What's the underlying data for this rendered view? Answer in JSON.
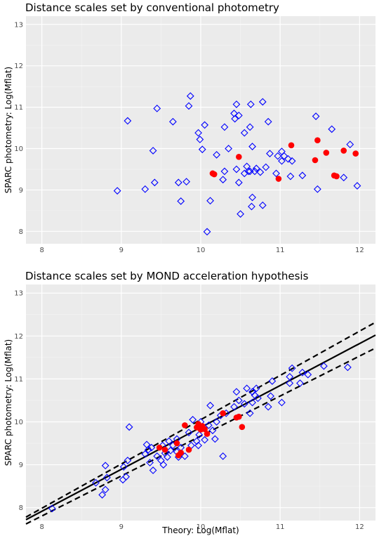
{
  "chart_data": [
    {
      "type": "scatter",
      "title": "Distance scales set by conventional photometry",
      "xlabel": "",
      "ylabel": "SPARC photometry:  Log(Mflat)",
      "xlim": [
        7.8,
        12.2
      ],
      "ylim": [
        7.7,
        13.2
      ],
      "xticks": [
        8,
        9,
        10,
        11,
        12
      ],
      "yticks": [
        8,
        9,
        10,
        11,
        12,
        13
      ],
      "grid": true,
      "background": "#ebebeb",
      "series": [
        {
          "marker": "diamond-open",
          "color": "#0000ff",
          "points": [
            [
              8.95,
              8.98
            ],
            [
              9.08,
              10.67
            ],
            [
              9.3,
              9.02
            ],
            [
              9.4,
              9.95
            ],
            [
              9.42,
              9.18
            ],
            [
              9.45,
              10.97
            ],
            [
              9.65,
              10.65
            ],
            [
              9.72,
              9.18
            ],
            [
              9.75,
              8.73
            ],
            [
              9.82,
              9.2
            ],
            [
              9.85,
              11.03
            ],
            [
              9.87,
              11.27
            ],
            [
              9.97,
              10.38
            ],
            [
              9.99,
              10.22
            ],
            [
              10.02,
              9.98
            ],
            [
              10.05,
              10.57
            ],
            [
              10.08,
              7.99
            ],
            [
              10.12,
              8.74
            ],
            [
              10.2,
              9.85
            ],
            [
              10.28,
              9.25
            ],
            [
              10.3,
              9.45
            ],
            [
              10.3,
              10.52
            ],
            [
              10.35,
              10.0
            ],
            [
              10.42,
              10.85
            ],
            [
              10.43,
              10.72
            ],
            [
              10.45,
              11.07
            ],
            [
              10.45,
              9.5
            ],
            [
              10.48,
              10.8
            ],
            [
              10.48,
              9.18
            ],
            [
              10.5,
              8.42
            ],
            [
              10.55,
              9.4
            ],
            [
              10.55,
              10.38
            ],
            [
              10.58,
              9.57
            ],
            [
              10.6,
              9.45
            ],
            [
              10.62,
              9.45
            ],
            [
              10.62,
              10.52
            ],
            [
              10.63,
              11.07
            ],
            [
              10.64,
              8.6
            ],
            [
              10.65,
              10.05
            ],
            [
              10.65,
              8.82
            ],
            [
              10.68,
              9.45
            ],
            [
              10.7,
              9.52
            ],
            [
              10.75,
              9.43
            ],
            [
              10.78,
              11.13
            ],
            [
              10.78,
              8.63
            ],
            [
              10.82,
              9.55
            ],
            [
              10.85,
              10.65
            ],
            [
              10.87,
              9.88
            ],
            [
              10.95,
              9.4
            ],
            [
              10.97,
              9.82
            ],
            [
              11.02,
              9.93
            ],
            [
              11.02,
              9.7
            ],
            [
              11.05,
              9.82
            ],
            [
              11.1,
              9.75
            ],
            [
              11.13,
              9.33
            ],
            [
              11.15,
              9.7
            ],
            [
              11.28,
              9.35
            ],
            [
              11.45,
              10.78
            ],
            [
              11.47,
              9.02
            ],
            [
              11.65,
              10.47
            ],
            [
              11.8,
              9.3
            ],
            [
              11.88,
              10.1
            ],
            [
              11.97,
              9.1
            ]
          ]
        },
        {
          "marker": "circle-filled",
          "color": "#ff0000",
          "points": [
            [
              10.15,
              9.4
            ],
            [
              10.17,
              9.38
            ],
            [
              10.48,
              9.8
            ],
            [
              10.98,
              9.27
            ],
            [
              11.14,
              10.08
            ],
            [
              11.44,
              9.72
            ],
            [
              11.47,
              10.2
            ],
            [
              11.58,
              9.9
            ],
            [
              11.68,
              9.35
            ],
            [
              11.71,
              9.33
            ],
            [
              11.8,
              9.95
            ],
            [
              11.95,
              9.88
            ]
          ]
        }
      ]
    },
    {
      "type": "scatter",
      "title": "Distance scales set by MOND acceleration hypothesis",
      "xlabel": "Theory:  Log(Mflat)",
      "ylabel": "SPARC photometry:  Log(Mflat)",
      "xlim": [
        7.8,
        12.2
      ],
      "ylim": [
        7.7,
        13.2
      ],
      "xticks": [
        8,
        9,
        10,
        11,
        12
      ],
      "yticks": [
        8,
        9,
        10,
        11,
        12,
        13
      ],
      "grid": true,
      "background": "#ebebeb",
      "lines": [
        {
          "style": "solid",
          "points": [
            [
              7.8,
              7.72
            ],
            [
              12.2,
              12.02
            ]
          ]
        },
        {
          "style": "dashed",
          "points": [
            [
              7.8,
              7.78
            ],
            [
              12.2,
              12.32
            ]
          ]
        },
        {
          "style": "dashed",
          "points": [
            [
              7.8,
              7.62
            ],
            [
              12.2,
              11.72
            ]
          ]
        }
      ],
      "series": [
        {
          "marker": "diamond-open",
          "color": "#0000ff",
          "points": [
            [
              8.13,
              7.98
            ],
            [
              8.68,
              8.58
            ],
            [
              8.76,
              8.3
            ],
            [
              8.8,
              8.42
            ],
            [
              8.8,
              8.98
            ],
            [
              8.82,
              8.7
            ],
            [
              9.02,
              8.65
            ],
            [
              9.03,
              8.95
            ],
            [
              9.06,
              8.72
            ],
            [
              9.08,
              9.1
            ],
            [
              9.1,
              9.88
            ],
            [
              9.3,
              9.25
            ],
            [
              9.32,
              9.47
            ],
            [
              9.34,
              9.35
            ],
            [
              9.36,
              9.05
            ],
            [
              9.38,
              9.4
            ],
            [
              9.4,
              8.87
            ],
            [
              9.45,
              9.2
            ],
            [
              9.5,
              9.1
            ],
            [
              9.52,
              9.45
            ],
            [
              9.53,
              9.0
            ],
            [
              9.55,
              9.27
            ],
            [
              9.58,
              9.18
            ],
            [
              9.6,
              9.55
            ],
            [
              9.62,
              9.33
            ],
            [
              9.65,
              9.45
            ],
            [
              9.7,
              9.6
            ],
            [
              9.7,
              9.3
            ],
            [
              9.72,
              9.18
            ],
            [
              9.75,
              9.4
            ],
            [
              9.8,
              9.2
            ],
            [
              9.85,
              9.75
            ],
            [
              9.88,
              9.45
            ],
            [
              9.9,
              10.05
            ],
            [
              9.95,
              9.55
            ],
            [
              9.97,
              9.45
            ],
            [
              9.98,
              9.7
            ],
            [
              10.0,
              10.0
            ],
            [
              10.02,
              9.85
            ],
            [
              10.05,
              9.58
            ],
            [
              10.1,
              9.92
            ],
            [
              10.12,
              10.38
            ],
            [
              10.15,
              9.8
            ],
            [
              10.18,
              9.6
            ],
            [
              10.2,
              10.0
            ],
            [
              10.25,
              10.15
            ],
            [
              10.28,
              9.2
            ],
            [
              10.32,
              10.2
            ],
            [
              10.42,
              10.35
            ],
            [
              10.45,
              10.7
            ],
            [
              10.48,
              10.5
            ],
            [
              10.55,
              10.42
            ],
            [
              10.58,
              10.78
            ],
            [
              10.62,
              10.2
            ],
            [
              10.65,
              10.45
            ],
            [
              10.65,
              10.7
            ],
            [
              10.68,
              10.62
            ],
            [
              10.7,
              10.78
            ],
            [
              10.72,
              10.55
            ],
            [
              10.85,
              10.35
            ],
            [
              10.88,
              10.6
            ],
            [
              10.9,
              10.95
            ],
            [
              11.02,
              10.45
            ],
            [
              11.12,
              10.9
            ],
            [
              11.12,
              11.05
            ],
            [
              11.15,
              11.25
            ],
            [
              11.25,
              10.9
            ],
            [
              11.28,
              11.15
            ],
            [
              11.35,
              11.1
            ],
            [
              11.55,
              11.3
            ],
            [
              11.85,
              11.27
            ]
          ]
        },
        {
          "marker": "circle-filled",
          "color": "#ff0000",
          "points": [
            [
              9.48,
              9.4
            ],
            [
              9.55,
              9.35
            ],
            [
              9.72,
              9.22
            ],
            [
              9.75,
              9.28
            ],
            [
              9.8,
              9.92
            ],
            [
              9.85,
              9.35
            ],
            [
              9.95,
              9.87
            ],
            [
              9.97,
              9.95
            ],
            [
              10.0,
              9.82
            ],
            [
              10.05,
              9.83
            ],
            [
              10.08,
              9.72
            ],
            [
              10.28,
              10.2
            ],
            [
              10.45,
              10.1
            ],
            [
              10.48,
              10.12
            ],
            [
              10.52,
              9.88
            ],
            [
              9.7,
              9.5
            ],
            [
              10.02,
              9.9
            ]
          ]
        }
      ]
    }
  ]
}
